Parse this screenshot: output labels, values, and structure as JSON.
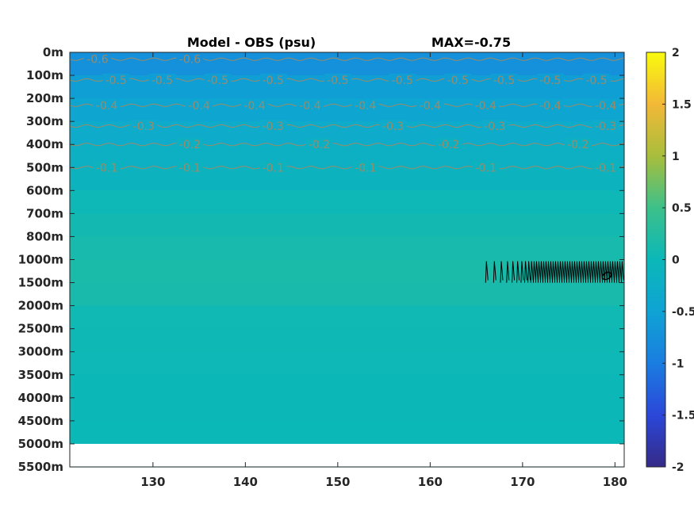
{
  "chart_data": {
    "type": "heatmap",
    "title": "Model - OBS (psu)",
    "annotation": "MAX=-0.75",
    "xlim": [
      121,
      181
    ],
    "x_ticks": [
      {
        "value": 130,
        "label": "130"
      },
      {
        "value": 140,
        "label": "140"
      },
      {
        "value": 150,
        "label": "150"
      },
      {
        "value": 160,
        "label": "160"
      },
      {
        "value": 170,
        "label": "170"
      },
      {
        "value": 180,
        "label": "180"
      }
    ],
    "y_ticks": [
      "0m",
      "100m",
      "200m",
      "300m",
      "400m",
      "500m",
      "600m",
      "700m",
      "800m",
      "1000m",
      "1500m",
      "2000m",
      "2500m",
      "3000m",
      "3500m",
      "4000m",
      "4500m",
      "5000m",
      "5500m"
    ],
    "data_bottom_label": "5000m",
    "colorbar": {
      "limits": [
        -2,
        2
      ],
      "ticks": [
        {
          "value": 2,
          "label": "2"
        },
        {
          "value": 1.5,
          "label": "1.5"
        },
        {
          "value": 1,
          "label": "1"
        },
        {
          "value": 0.5,
          "label": "0.5"
        },
        {
          "value": 0,
          "label": "0"
        },
        {
          "value": -0.5,
          "label": "-0.5"
        },
        {
          "value": -1,
          "label": "-1"
        },
        {
          "value": -1.5,
          "label": "-1.5"
        },
        {
          "value": -2,
          "label": "-2"
        }
      ],
      "colormap": "parula"
    },
    "depth_profile": [
      {
        "depth": "0m",
        "value": -0.75
      },
      {
        "depth": "100m",
        "value": -0.55
      },
      {
        "depth": "200m",
        "value": -0.42
      },
      {
        "depth": "300m",
        "value": -0.32
      },
      {
        "depth": "400m",
        "value": -0.2
      },
      {
        "depth": "500m",
        "value": -0.12
      },
      {
        "depth": "600m",
        "value": 0.02
      },
      {
        "depth": "700m",
        "value": 0.08
      },
      {
        "depth": "800m",
        "value": 0.12
      },
      {
        "depth": "1000m",
        "value": 0.16
      },
      {
        "depth": "1500m",
        "value": 0.14
      },
      {
        "depth": "2000m",
        "value": 0.05
      },
      {
        "depth": "2500m",
        "value": 0.03
      },
      {
        "depth": "3000m",
        "value": 0.02
      },
      {
        "depth": "3500m",
        "value": 0.01
      },
      {
        "depth": "4000m",
        "value": 0.01
      },
      {
        "depth": "4500m",
        "value": 0.0
      },
      {
        "depth": "5000m",
        "value": 0.0
      }
    ],
    "contour_lines": [
      {
        "level": "-0.6",
        "depth_index": 0.3,
        "labels": [
          {
            "x": 124,
            "text": "-0.6"
          },
          {
            "x": 134,
            "text": "-0.6"
          }
        ]
      },
      {
        "level": "-0.5",
        "depth_index": 1.2,
        "labels": [
          {
            "x": 126,
            "text": "-0.5"
          },
          {
            "x": 131,
            "text": "-0.5"
          },
          {
            "x": 137,
            "text": "-0.5"
          },
          {
            "x": 143,
            "text": "-0.5"
          },
          {
            "x": 150,
            "text": "-0.5"
          },
          {
            "x": 157,
            "text": "-0.5"
          },
          {
            "x": 163,
            "text": "-0.5"
          },
          {
            "x": 168,
            "text": "-0.5"
          },
          {
            "x": 173,
            "text": "-0.5"
          },
          {
            "x": 178,
            "text": "-0.5"
          }
        ]
      },
      {
        "level": "-0.4",
        "depth_index": 2.3,
        "labels": [
          {
            "x": 125,
            "text": "-0.4"
          },
          {
            "x": 135,
            "text": "-0.4"
          },
          {
            "x": 141,
            "text": "-0.4"
          },
          {
            "x": 147,
            "text": "-0.4"
          },
          {
            "x": 153,
            "text": "-0.4"
          },
          {
            "x": 160,
            "text": "-0.4"
          },
          {
            "x": 166,
            "text": "-0.4"
          },
          {
            "x": 173,
            "text": "-0.4"
          },
          {
            "x": 179,
            "text": "-0.4"
          }
        ]
      },
      {
        "level": "-0.3",
        "depth_index": 3.2,
        "labels": [
          {
            "x": 129,
            "text": "-0.3"
          },
          {
            "x": 143,
            "text": "-0.3"
          },
          {
            "x": 156,
            "text": "-0.3"
          },
          {
            "x": 167,
            "text": "-0.3"
          },
          {
            "x": 179,
            "text": "-0.3"
          }
        ]
      },
      {
        "level": "-0.2",
        "depth_index": 4.0,
        "labels": [
          {
            "x": 134,
            "text": "-0.2"
          },
          {
            "x": 148,
            "text": "-0.2"
          },
          {
            "x": 162,
            "text": "-0.2"
          },
          {
            "x": 176,
            "text": "-0.2"
          }
        ]
      },
      {
        "level": "-0.1",
        "depth_index": 5.0,
        "labels": [
          {
            "x": 125,
            "text": "-0.1"
          },
          {
            "x": 134,
            "text": "-0.1"
          },
          {
            "x": 143,
            "text": "-0.1"
          },
          {
            "x": 153,
            "text": "-0.1"
          },
          {
            "x": 166,
            "text": "-0.1"
          },
          {
            "x": 179,
            "text": "-0.1"
          }
        ]
      }
    ],
    "black_contour_region": {
      "x_start": 166,
      "x_end": 181,
      "depth_top_index": 9,
      "depth_bottom_index": 10
    }
  }
}
